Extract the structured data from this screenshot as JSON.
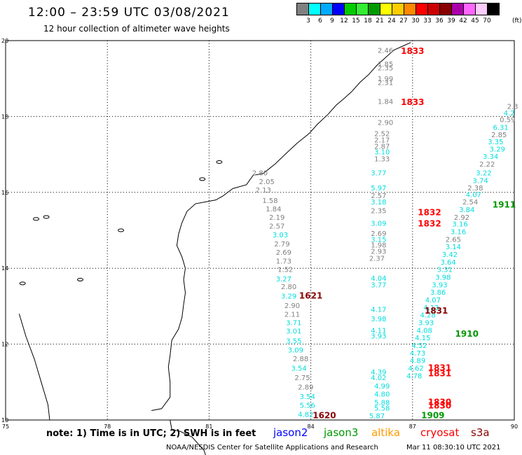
{
  "header": {
    "title": "12:00 – 23:59 UTC 03/08/2021",
    "subtitle": "12 hour collection of altimeter wave heights"
  },
  "legend": {
    "unit": "(ft)",
    "bins": [
      {
        "label": "3",
        "color": "#808080"
      },
      {
        "label": "6",
        "color": "#00ffff"
      },
      {
        "label": "9",
        "color": "#00aaff"
      },
      {
        "label": "12",
        "color": "#0000ff"
      },
      {
        "label": "15",
        "color": "#00cc00"
      },
      {
        "label": "18",
        "color": "#33ee33"
      },
      {
        "label": "21",
        "color": "#009900"
      },
      {
        "label": "24",
        "color": "#ffff00"
      },
      {
        "label": "27",
        "color": "#ffcc00"
      },
      {
        "label": "30",
        "color": "#ff8800"
      },
      {
        "label": "33",
        "color": "#ff0000"
      },
      {
        "label": "36",
        "color": "#cc0000"
      },
      {
        "label": "39",
        "color": "#880000"
      },
      {
        "label": "42",
        "color": "#aa00aa"
      },
      {
        "label": "45",
        "color": "#ff66ff"
      },
      {
        "label": "70",
        "color": "#ffccff"
      }
    ],
    "extra_color": "#000000"
  },
  "axes": {
    "x_ticks": [
      "75",
      "78",
      "81",
      "84",
      "87",
      "90"
    ],
    "y_ticks": [
      "20",
      "18",
      "16",
      "14",
      "12",
      "10"
    ]
  },
  "track_labels": [
    {
      "text": "1833",
      "lon": 87.0,
      "lat": 19.65,
      "color": "#ff0000"
    },
    {
      "text": "1833",
      "lon": 87.0,
      "lat": 18.3,
      "color": "#ff0000"
    },
    {
      "text": "1832",
      "lon": 87.5,
      "lat": 15.4,
      "color": "#ff0000"
    },
    {
      "text": "1832",
      "lon": 87.5,
      "lat": 15.1,
      "color": "#ff0000"
    },
    {
      "text": "1621",
      "lon": 84.0,
      "lat": 13.2,
      "color": "#880000"
    },
    {
      "text": "1831",
      "lon": 87.7,
      "lat": 12.8,
      "color": "#880000"
    },
    {
      "text": "1911",
      "lon": 89.7,
      "lat": 15.6,
      "color": "#009900"
    },
    {
      "text": "1910",
      "lon": 88.6,
      "lat": 12.2,
      "color": "#009900"
    },
    {
      "text": "1831",
      "lon": 87.8,
      "lat": 11.3,
      "color": "#ff0000"
    },
    {
      "text": "1831",
      "lon": 87.8,
      "lat": 11.15,
      "color": "#ff0000"
    },
    {
      "text": "1830",
      "lon": 87.8,
      "lat": 10.4,
      "color": "#ff0000"
    },
    {
      "text": "1830",
      "lon": 87.8,
      "lat": 10.3,
      "color": "#ff0000"
    },
    {
      "text": "1620",
      "lon": 84.4,
      "lat": 10.05,
      "color": "#880000"
    },
    {
      "text": "1909",
      "lon": 87.6,
      "lat": 10.05,
      "color": "#009900"
    }
  ],
  "wave_heights": [
    {
      "t": "2.46",
      "lon": 86.2,
      "lat": 19.68,
      "c": "#808080"
    },
    {
      "t": "1.85",
      "lon": 86.2,
      "lat": 19.32,
      "c": "#808080"
    },
    {
      "t": "2.35",
      "lon": 86.2,
      "lat": 19.22,
      "c": "#808080"
    },
    {
      "t": "1.99",
      "lon": 86.2,
      "lat": 18.93,
      "c": "#808080"
    },
    {
      "t": "2.31",
      "lon": 86.2,
      "lat": 18.83,
      "c": "#808080"
    },
    {
      "t": "1.84",
      "lon": 86.2,
      "lat": 18.33,
      "c": "#808080"
    },
    {
      "t": "2.90",
      "lon": 86.2,
      "lat": 17.78,
      "c": "#808080"
    },
    {
      "t": "2.52",
      "lon": 86.1,
      "lat": 17.48,
      "c": "#808080"
    },
    {
      "t": "2.17",
      "lon": 86.1,
      "lat": 17.32,
      "c": "#808080"
    },
    {
      "t": "2.87",
      "lon": 86.1,
      "lat": 17.15,
      "c": "#808080"
    },
    {
      "t": "3.10",
      "lon": 86.1,
      "lat": 17.0,
      "c": "#00dddd"
    },
    {
      "t": "1.33",
      "lon": 86.1,
      "lat": 16.82,
      "c": "#808080"
    },
    {
      "t": "3.77",
      "lon": 86.0,
      "lat": 16.45,
      "c": "#00dddd"
    },
    {
      "t": "5.97",
      "lon": 86.0,
      "lat": 16.05,
      "c": "#00dddd"
    },
    {
      "t": "2.57",
      "lon": 86.0,
      "lat": 15.85,
      "c": "#808080"
    },
    {
      "t": "3.18",
      "lon": 86.0,
      "lat": 15.68,
      "c": "#00dddd"
    },
    {
      "t": "2.35",
      "lon": 86.0,
      "lat": 15.45,
      "c": "#808080"
    },
    {
      "t": "3.09",
      "lon": 86.0,
      "lat": 15.12,
      "c": "#00dddd"
    },
    {
      "t": "2.69",
      "lon": 86.0,
      "lat": 14.85,
      "c": "#808080"
    },
    {
      "t": "3.15",
      "lon": 86.0,
      "lat": 14.7,
      "c": "#00dddd"
    },
    {
      "t": "1.98",
      "lon": 86.0,
      "lat": 14.55,
      "c": "#808080"
    },
    {
      "t": "2.93",
      "lon": 86.0,
      "lat": 14.38,
      "c": "#808080"
    },
    {
      "t": "2.37",
      "lon": 85.95,
      "lat": 14.2,
      "c": "#808080"
    },
    {
      "t": "4.04",
      "lon": 86.0,
      "lat": 13.67,
      "c": "#00dddd"
    },
    {
      "t": "3.77",
      "lon": 86.0,
      "lat": 13.5,
      "c": "#00dddd"
    },
    {
      "t": "4.17",
      "lon": 86.0,
      "lat": 12.85,
      "c": "#00dddd"
    },
    {
      "t": "3.98",
      "lon": 86.0,
      "lat": 12.6,
      "c": "#00dddd"
    },
    {
      "t": "4.11",
      "lon": 86.0,
      "lat": 12.3,
      "c": "#00dddd"
    },
    {
      "t": "3.93",
      "lon": 86.0,
      "lat": 12.15,
      "c": "#00dddd"
    },
    {
      "t": "4.39",
      "lon": 86.0,
      "lat": 11.2,
      "c": "#00dddd"
    },
    {
      "t": "4.02",
      "lon": 86.0,
      "lat": 11.05,
      "c": "#00dddd"
    },
    {
      "t": "4.99",
      "lon": 86.1,
      "lat": 10.83,
      "c": "#00dddd"
    },
    {
      "t": "4.80",
      "lon": 86.1,
      "lat": 10.62,
      "c": "#00dddd"
    },
    {
      "t": "5.88",
      "lon": 86.1,
      "lat": 10.4,
      "c": "#00dddd"
    },
    {
      "t": "5.58",
      "lon": 86.1,
      "lat": 10.25,
      "c": "#00dddd"
    },
    {
      "t": "5.87",
      "lon": 85.95,
      "lat": 10.05,
      "c": "#00dddd"
    },
    {
      "t": "2.80",
      "lon": 82.5,
      "lat": 16.45,
      "c": "#808080"
    },
    {
      "t": "2.05",
      "lon": 82.7,
      "lat": 16.22,
      "c": "#808080"
    },
    {
      "t": "2.13",
      "lon": 82.6,
      "lat": 16.0,
      "c": "#808080"
    },
    {
      "t": "1.58",
      "lon": 82.8,
      "lat": 15.72,
      "c": "#808080"
    },
    {
      "t": "1.84",
      "lon": 82.9,
      "lat": 15.5,
      "c": "#808080"
    },
    {
      "t": "2.19",
      "lon": 83.0,
      "lat": 15.28,
      "c": "#808080"
    },
    {
      "t": "2.57",
      "lon": 83.0,
      "lat": 15.05,
      "c": "#808080"
    },
    {
      "t": "3.03",
      "lon": 83.1,
      "lat": 14.82,
      "c": "#00dddd"
    },
    {
      "t": "2.79",
      "lon": 83.15,
      "lat": 14.58,
      "c": "#808080"
    },
    {
      "t": "2.69",
      "lon": 83.2,
      "lat": 14.35,
      "c": "#808080"
    },
    {
      "t": "1.73",
      "lon": 83.2,
      "lat": 14.12,
      "c": "#808080"
    },
    {
      "t": "1.52",
      "lon": 83.25,
      "lat": 13.9,
      "c": "#808080"
    },
    {
      "t": "3.27",
      "lon": 83.2,
      "lat": 13.65,
      "c": "#00dddd"
    },
    {
      "t": "2.80",
      "lon": 83.35,
      "lat": 13.45,
      "c": "#808080"
    },
    {
      "t": "3.29",
      "lon": 83.35,
      "lat": 13.2,
      "c": "#00dddd"
    },
    {
      "t": "2.90",
      "lon": 83.45,
      "lat": 12.95,
      "c": "#808080"
    },
    {
      "t": "2.11",
      "lon": 83.45,
      "lat": 12.72,
      "c": "#808080"
    },
    {
      "t": "3.71",
      "lon": 83.5,
      "lat": 12.5,
      "c": "#00dddd"
    },
    {
      "t": "3.01",
      "lon": 83.5,
      "lat": 12.28,
      "c": "#00dddd"
    },
    {
      "t": "3.55",
      "lon": 83.5,
      "lat": 12.02,
      "c": "#00dddd"
    },
    {
      "t": "3.09",
      "lon": 83.55,
      "lat": 11.78,
      "c": "#00dddd"
    },
    {
      "t": "2.88",
      "lon": 83.7,
      "lat": 11.55,
      "c": "#808080"
    },
    {
      "t": "3.54",
      "lon": 83.65,
      "lat": 11.3,
      "c": "#00dddd"
    },
    {
      "t": "2.75",
      "lon": 83.75,
      "lat": 11.05,
      "c": "#808080"
    },
    {
      "t": "2.89",
      "lon": 83.85,
      "lat": 10.8,
      "c": "#808080"
    },
    {
      "t": "3.54",
      "lon": 83.9,
      "lat": 10.55,
      "c": "#00dddd"
    },
    {
      "t": "5.56",
      "lon": 83.9,
      "lat": 10.32,
      "c": "#00dddd"
    },
    {
      "t": "4.82",
      "lon": 83.85,
      "lat": 10.08,
      "c": "#00dddd"
    },
    {
      "t": "2.3",
      "lon": 89.95,
      "lat": 18.2,
      "c": "#808080"
    },
    {
      "t": "4.2",
      "lon": 89.85,
      "lat": 18.03,
      "c": "#00dddd"
    },
    {
      "t": "0.59",
      "lon": 89.8,
      "lat": 17.85,
      "c": "#808080"
    },
    {
      "t": "6.31",
      "lon": 89.6,
      "lat": 17.65,
      "c": "#00dddd"
    },
    {
      "t": "2.85",
      "lon": 89.55,
      "lat": 17.45,
      "c": "#808080"
    },
    {
      "t": "3.35",
      "lon": 89.45,
      "lat": 17.27,
      "c": "#00dddd"
    },
    {
      "t": "3.29",
      "lon": 89.5,
      "lat": 17.08,
      "c": "#00dddd"
    },
    {
      "t": "3.34",
      "lon": 89.3,
      "lat": 16.88,
      "c": "#00dddd"
    },
    {
      "t": "2.22",
      "lon": 89.2,
      "lat": 16.68,
      "c": "#808080"
    },
    {
      "t": "3.22",
      "lon": 89.1,
      "lat": 16.45,
      "c": "#00dddd"
    },
    {
      "t": "3.74",
      "lon": 89.0,
      "lat": 16.25,
      "c": "#00dddd"
    },
    {
      "t": "2.38",
      "lon": 88.85,
      "lat": 16.05,
      "c": "#808080"
    },
    {
      "t": "4.07",
      "lon": 88.8,
      "lat": 15.88,
      "c": "#00dddd"
    },
    {
      "t": "2.54",
      "lon": 88.7,
      "lat": 15.68,
      "c": "#808080"
    },
    {
      "t": "3.84",
      "lon": 88.6,
      "lat": 15.48,
      "c": "#00dddd"
    },
    {
      "t": "2.92",
      "lon": 88.45,
      "lat": 15.28,
      "c": "#808080"
    },
    {
      "t": "3.16",
      "lon": 88.4,
      "lat": 15.1,
      "c": "#00dddd"
    },
    {
      "t": "3.16",
      "lon": 88.35,
      "lat": 14.9,
      "c": "#00dddd"
    },
    {
      "t": "2.65",
      "lon": 88.2,
      "lat": 14.7,
      "c": "#808080"
    },
    {
      "t": "3.14",
      "lon": 88.2,
      "lat": 14.5,
      "c": "#00dddd"
    },
    {
      "t": "3.42",
      "lon": 88.1,
      "lat": 14.3,
      "c": "#00dddd"
    },
    {
      "t": "3.64",
      "lon": 88.05,
      "lat": 14.1,
      "c": "#00dddd"
    },
    {
      "t": "3.31",
      "lon": 87.95,
      "lat": 13.9,
      "c": "#00dddd"
    },
    {
      "t": "3.98",
      "lon": 87.9,
      "lat": 13.7,
      "c": "#00dddd"
    },
    {
      "t": "3.93",
      "lon": 87.8,
      "lat": 13.5,
      "c": "#00dddd"
    },
    {
      "t": "3.86",
      "lon": 87.75,
      "lat": 13.3,
      "c": "#00dddd"
    },
    {
      "t": "4.07",
      "lon": 87.6,
      "lat": 13.1,
      "c": "#00dddd"
    },
    {
      "t": "4.13",
      "lon": 87.55,
      "lat": 12.9,
      "c": "#00dddd"
    },
    {
      "t": "4.28",
      "lon": 87.45,
      "lat": 12.7,
      "c": "#00dddd"
    },
    {
      "t": "3.93",
      "lon": 87.4,
      "lat": 12.5,
      "c": "#00dddd"
    },
    {
      "t": "4.08",
      "lon": 87.35,
      "lat": 12.3,
      "c": "#00dddd"
    },
    {
      "t": "4.15",
      "lon": 87.3,
      "lat": 12.1,
      "c": "#00dddd"
    },
    {
      "t": "4.52",
      "lon": 87.2,
      "lat": 11.9,
      "c": "#00dddd"
    },
    {
      "t": "4.73",
      "lon": 87.15,
      "lat": 11.7,
      "c": "#00dddd"
    },
    {
      "t": "4.89",
      "lon": 87.15,
      "lat": 11.5,
      "c": "#00dddd"
    },
    {
      "t": "4.62",
      "lon": 87.1,
      "lat": 11.3,
      "c": "#00dddd"
    },
    {
      "t": "4.78",
      "lon": 87.05,
      "lat": 11.1,
      "c": "#00dddd"
    }
  ],
  "footer": {
    "note": "note: 1) Time is in UTC; 2) SWH is in feet",
    "satellites": [
      {
        "name": "jason2",
        "color": "#0000ff"
      },
      {
        "name": "jason3",
        "color": "#009900"
      },
      {
        "name": "altika",
        "color": "#ff9900"
      },
      {
        "name": "cryosat",
        "color": "#ff0000"
      },
      {
        "name": "s3a",
        "color": "#880000"
      }
    ],
    "credit": "NOAA/NESDIS Center for Satellite Applications and Research",
    "timestamp": "Mar 11 08:30:10 UTC 2021"
  }
}
